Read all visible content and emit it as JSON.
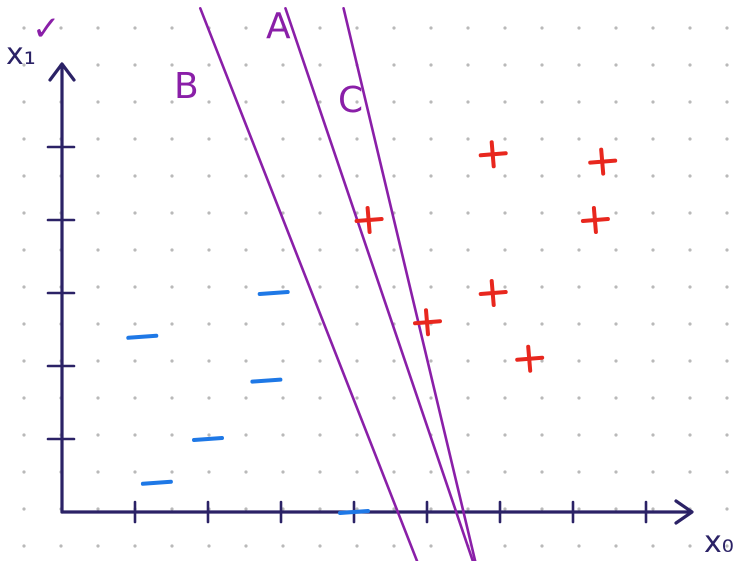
{
  "colors": {
    "axis": "#2b2266",
    "boundary": "#8a1fa8",
    "positive": "#e8271e",
    "negative": "#1e78e6",
    "dots": "#b9b9b9",
    "checkmark": "#8a1fa8"
  },
  "labels": {
    "y_axis": "x₁",
    "x_axis": "x₀",
    "line_a": "A",
    "line_b": "B",
    "line_c": "C",
    "check": "✓"
  },
  "positive_marker": "+",
  "negative_marker": "–",
  "chart_data": {
    "type": "scatter",
    "title": "",
    "xlabel": "x₀",
    "ylabel": "x₁",
    "xlim": [
      0,
      8.6
    ],
    "ylim": [
      0,
      6.2
    ],
    "grid": "dotted",
    "series": [
      {
        "name": "+",
        "marker": "plus",
        "points": [
          [
            4.2,
            4.0
          ],
          [
            5.0,
            2.6
          ],
          [
            5.9,
            3.0
          ],
          [
            6.4,
            2.1
          ],
          [
            5.9,
            4.9
          ],
          [
            7.3,
            4.0
          ],
          [
            7.4,
            4.8
          ]
        ]
      },
      {
        "name": "–",
        "marker": "dash",
        "points": [
          [
            1.1,
            2.4
          ],
          [
            2.0,
            1.0
          ],
          [
            2.9,
            3.0
          ],
          [
            2.8,
            1.8
          ],
          [
            1.3,
            0.4
          ],
          [
            4.0,
            0.0
          ]
        ]
      }
    ],
    "lines": [
      {
        "name": "A",
        "x_at_bottom": 5.4,
        "slope": -2.95
      },
      {
        "name": "B",
        "x_at_bottom": 4.6,
        "slope": -2.55
      },
      {
        "name": "C",
        "x_at_bottom": 5.5,
        "slope": -4.2
      }
    ]
  }
}
